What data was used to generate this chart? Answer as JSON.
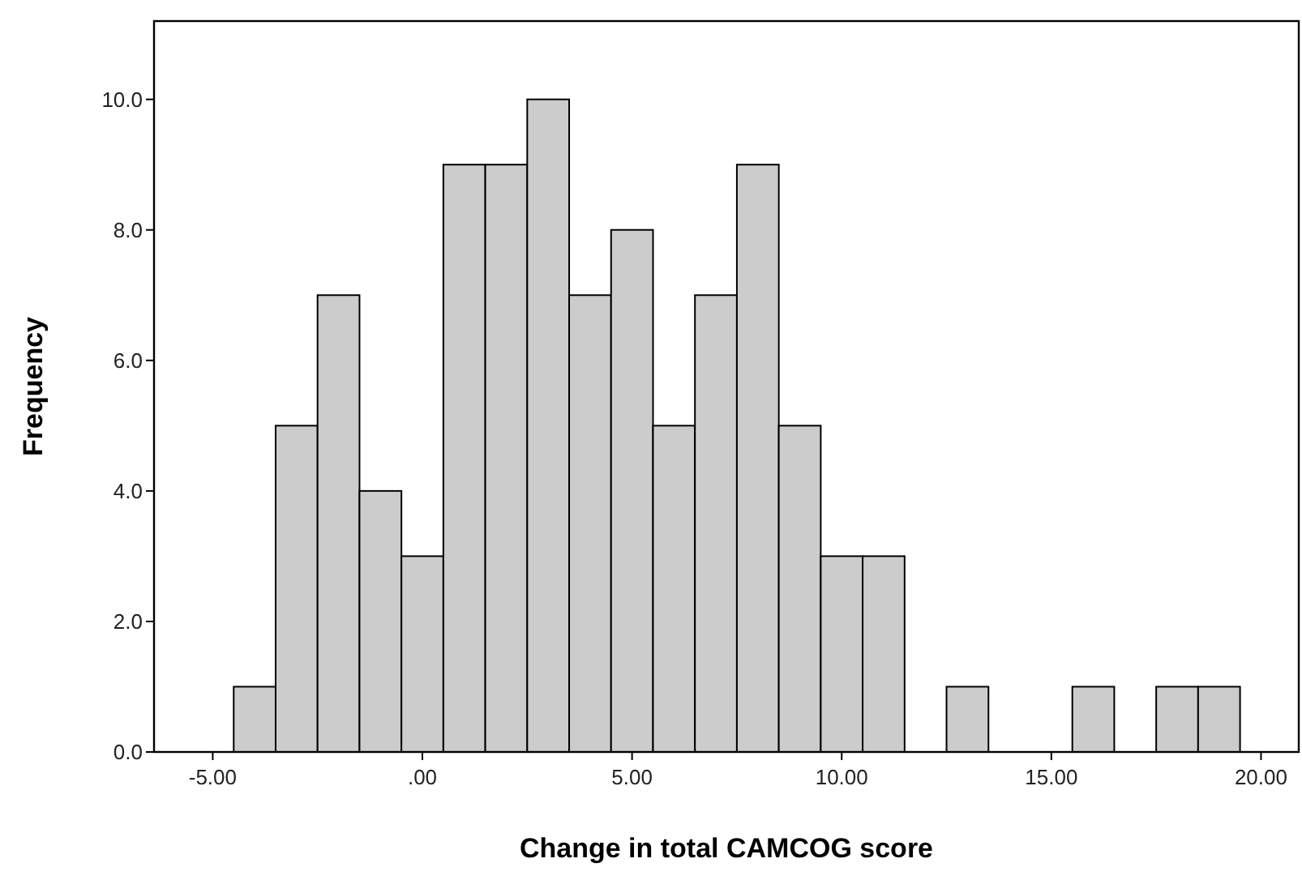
{
  "chart_data": {
    "type": "histogram",
    "xlabel": "Change in total CAMCOG score",
    "ylabel": "Frequency",
    "bins": [
      -4.5,
      -3.5,
      -2.5,
      -1.5,
      -0.5,
      0.5,
      1.5,
      2.5,
      3.5,
      4.5,
      5.5,
      6.5,
      7.5,
      8.5,
      9.5,
      10.5,
      11.5,
      12.5,
      13.5,
      14.5,
      15.5,
      16.5,
      17.5,
      18.5,
      19.5
    ],
    "values": [
      1,
      5,
      7,
      4,
      3,
      9,
      9,
      10,
      7,
      8,
      5,
      7,
      9,
      5,
      3,
      3,
      0,
      1,
      0,
      0,
      1,
      0,
      1,
      1
    ],
    "color": "#cccccc",
    "xlim": [
      -6.4,
      20.9
    ],
    "ylim": [
      0,
      11.2
    ],
    "xticks": [
      {
        "value": -5,
        "label": "-5.00"
      },
      {
        "value": 0,
        "label": ".00"
      },
      {
        "value": 5,
        "label": "5.00"
      },
      {
        "value": 10,
        "label": "10.00"
      },
      {
        "value": 15,
        "label": "15.00"
      },
      {
        "value": 20,
        "label": "20.00"
      }
    ],
    "yticks": [
      {
        "value": 0,
        "label": "0.0"
      },
      {
        "value": 2,
        "label": "2.0"
      },
      {
        "value": 4,
        "label": "4.0"
      },
      {
        "value": 6,
        "label": "6.0"
      },
      {
        "value": 8,
        "label": "8.0"
      },
      {
        "value": 10,
        "label": "10.0"
      }
    ],
    "grid": false
  }
}
